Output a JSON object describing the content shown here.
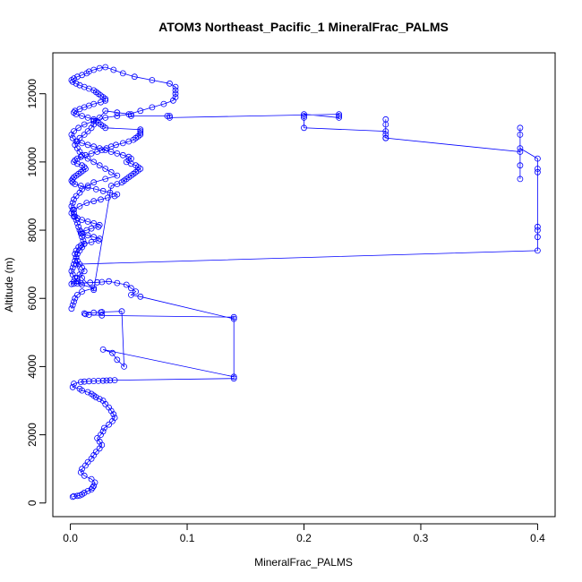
{
  "chart_data": {
    "type": "line",
    "title": "ATOM3 Northeast_Pacific_1 MineralFrac_PALMS",
    "xlabel": "MineralFrac_PALMS",
    "ylabel": "Altitude (m)",
    "xlim": [
      -0.015,
      0.415
    ],
    "ylim": [
      -400,
      13200
    ],
    "x_ticks": [
      0.0,
      0.1,
      0.2,
      0.3,
      0.4
    ],
    "x_tick_labels": [
      "0.0",
      "0.1",
      "0.2",
      "0.3",
      "0.4"
    ],
    "y_ticks": [
      0,
      2000,
      4000,
      6000,
      8000,
      10000,
      12000
    ],
    "y_tick_labels": [
      "0",
      "2000",
      "4000",
      "6000",
      "8000",
      "10000",
      "12000"
    ],
    "grid": false,
    "series": [
      {
        "color": "#0000ff",
        "marker": "open-circle",
        "x": [
          0.002,
          0.003,
          0.006,
          0.008,
          0.01,
          0.012,
          0.015,
          0.018,
          0.019,
          0.02,
          0.021,
          0.018,
          0.012,
          0.009,
          0.01,
          0.013,
          0.015,
          0.018,
          0.02,
          0.022,
          0.025,
          0.027,
          0.025,
          0.023,
          0.026,
          0.028,
          0.029,
          0.033,
          0.036,
          0.038,
          0.037,
          0.035,
          0.033,
          0.03,
          0.028,
          0.025,
          0.022,
          0.02,
          0.018,
          0.015,
          0.01,
          0.008,
          0.002,
          0.003,
          0.009,
          0.012,
          0.016,
          0.02,
          0.024,
          0.028,
          0.031,
          0.034,
          0.038,
          0.14,
          0.14,
          0.027,
          0.016,
          0.013,
          0.012,
          0.02,
          0.026,
          0.027,
          0.044,
          0.046,
          0.04,
          0.036,
          0.028,
          0.14,
          0.14,
          0.06,
          0.052,
          0.056,
          0.052,
          0.048,
          0.04,
          0.033,
          0.027,
          0.023,
          0.017,
          0.009,
          0.006,
          0.003,
          0.001,
          0.003,
          0.006,
          0.008,
          0.012,
          0.01,
          0.008,
          0.006,
          0.005,
          0.004,
          0.005,
          0.007,
          0.009,
          0.012,
          0.018,
          0.024,
          0.025,
          0.02,
          0.015,
          0.01,
          0.009,
          0.014,
          0.018,
          0.024,
          0.025,
          0.02,
          0.015,
          0.01,
          0.006,
          0.003,
          0.001,
          0.003,
          0.008,
          0.014,
          0.02,
          0.026,
          0.032,
          0.038,
          0.04,
          0.034,
          0.028,
          0.022,
          0.015,
          0.009,
          0.004,
          0.002,
          0.001,
          0.002,
          0.003,
          0.005,
          0.007,
          0.009,
          0.011,
          0.013,
          0.012,
          0.01,
          0.006,
          0.003,
          0.004,
          0.006,
          0.009,
          0.013,
          0.018,
          0.023,
          0.027,
          0.031,
          0.035,
          0.039,
          0.045,
          0.05,
          0.054,
          0.056,
          0.058,
          0.06,
          0.06,
          0.06,
          0.06,
          0.03,
          0.028,
          0.026,
          0.024,
          0.022,
          0.02,
          0.015,
          0.01,
          0.005,
          0.003,
          0.004,
          0.008,
          0.012,
          0.016,
          0.02,
          0.026,
          0.03,
          0.03,
          0.028,
          0.026,
          0.024,
          0.022,
          0.02,
          0.016,
          0.012,
          0.008,
          0.005,
          0.002,
          0.001,
          0.003,
          0.006,
          0.01,
          0.014,
          0.016,
          0.02,
          0.025,
          0.03,
          0.037,
          0.045,
          0.055,
          0.07,
          0.085,
          0.09,
          0.09,
          0.09,
          0.09,
          0.088,
          0.08,
          0.07,
          0.06,
          0.05,
          0.04,
          0.03,
          0.02,
          0.012,
          0.007,
          0.003,
          0.001,
          0.002,
          0.005,
          0.01,
          0.015,
          0.02,
          0.025,
          0.03,
          0.035,
          0.04,
          0.045,
          0.05,
          0.052,
          0.05,
          0.048,
          0.052,
          0.056,
          0.058,
          0.06,
          0.058,
          0.056,
          0.054,
          0.052,
          0.05,
          0.048,
          0.046,
          0.044,
          0.04,
          0.035,
          0.02,
          0.01,
          0.005,
          0.4,
          0.4,
          0.4,
          0.4,
          0.4,
          0.4,
          0.4,
          0.385,
          0.385,
          0.385,
          0.385,
          0.385,
          0.385,
          0.27,
          0.27,
          0.27,
          0.27,
          0.27,
          0.27,
          0.2,
          0.2,
          0.2,
          0.2,
          0.23,
          0.23,
          0.23,
          0.085,
          0.085,
          0.083,
          0.052,
          0.052,
          0.04,
          0.03,
          0.025,
          0.02,
          0.02,
          0.018,
          0.015,
          0.012,
          0.008,
          0.006,
          0.004,
          0.006,
          0.008,
          0.01,
          0.015,
          0.02,
          0.025,
          0.03,
          0.035,
          0.04,
          0.03,
          0.02,
          0.015,
          0.01,
          0.008,
          0.005,
          0.003,
          0.002,
          0.001,
          0.002,
          0.003,
          0.004,
          0.005,
          0.006,
          0.007,
          0.008,
          0.009,
          0.01,
          0.011,
          0.012,
          0.01,
          0.008,
          0.006,
          0.005,
          0.004,
          0.003,
          0.002,
          0.001,
          0.002,
          0.004,
          0.006,
          0.01,
          0.02,
          0.01,
          0.006,
          0.004,
          0.003,
          0.002,
          0.001
        ],
        "y": [
          180,
          200,
          210,
          220,
          250,
          300,
          350,
          400,
          450,
          500,
          600,
          700,
          800,
          900,
          1000,
          1100,
          1200,
          1300,
          1400,
          1500,
          1600,
          1700,
          1800,
          1900,
          2000,
          2100,
          2200,
          2300,
          2400,
          2500,
          2600,
          2700,
          2800,
          2900,
          3000,
          3050,
          3100,
          3150,
          3200,
          3250,
          3300,
          3350,
          3400,
          3500,
          3550,
          3560,
          3570,
          3575,
          3580,
          3585,
          3590,
          3595,
          3600,
          3650,
          5450,
          5500,
          5520,
          5540,
          5560,
          5580,
          5590,
          5600,
          5620,
          4000,
          4200,
          4400,
          4500,
          3700,
          5400,
          6050,
          6100,
          6200,
          6300,
          6400,
          6450,
          6500,
          6480,
          6470,
          6460,
          6450,
          6440,
          6430,
          6420,
          6500,
          6600,
          6700,
          6800,
          6900,
          7000,
          7100,
          7200,
          7300,
          7400,
          7500,
          7550,
          7600,
          7650,
          7700,
          7750,
          7800,
          7850,
          7900,
          7950,
          8000,
          8050,
          8100,
          8150,
          8200,
          8250,
          8300,
          8350,
          8400,
          8500,
          8600,
          8700,
          8800,
          8850,
          8900,
          8950,
          9000,
          9050,
          9100,
          9150,
          9200,
          9250,
          9300,
          9350,
          9400,
          9450,
          9500,
          9550,
          9600,
          9650,
          9700,
          9750,
          9800,
          9850,
          9900,
          9950,
          10000,
          10050,
          10100,
          10150,
          10200,
          10250,
          10300,
          10350,
          10400,
          10450,
          10500,
          10550,
          10600,
          10650,
          10700,
          10750,
          10800,
          10850,
          10900,
          10950,
          11000,
          11050,
          11100,
          11150,
          11200,
          11250,
          11300,
          11350,
          11400,
          11450,
          11500,
          11550,
          11600,
          11650,
          11700,
          11750,
          11800,
          11850,
          11900,
          11950,
          12000,
          12050,
          12100,
          12150,
          12200,
          12250,
          12300,
          12350,
          12400,
          12450,
          12500,
          12550,
          12600,
          12650,
          12700,
          12750,
          12780,
          12700,
          12600,
          12500,
          12400,
          12300,
          12200,
          12100,
          12000,
          11900,
          11800,
          11700,
          11600,
          11500,
          11400,
          11350,
          11300,
          11200,
          11100,
          11000,
          10900,
          10800,
          10700,
          10600,
          10550,
          10500,
          10450,
          10400,
          10350,
          10300,
          10250,
          10200,
          10150,
          10100,
          10050,
          10000,
          9950,
          9900,
          9850,
          9800,
          9750,
          9700,
          9650,
          9600,
          9550,
          9500,
          9450,
          9400,
          9350,
          9300,
          6250,
          6600,
          7000,
          7400,
          7800,
          8000,
          8100,
          9700,
          9800,
          10100,
          10400,
          10800,
          11000,
          9500,
          9900,
          10300,
          10700,
          11100,
          11250,
          10700,
          10800,
          10900,
          11000,
          11300,
          11350,
          11400,
          11300,
          11350,
          11400,
          11300,
          11350,
          11350,
          11350,
          11400,
          11450,
          11500,
          11300,
          11200,
          11100,
          11000,
          10900,
          10800,
          10700,
          10600,
          10500,
          10400,
          10300,
          10200,
          10100,
          10000,
          9900,
          9800,
          9700,
          9600,
          9500,
          9400,
          9300,
          9200,
          9100,
          9000,
          8900,
          8800,
          8700,
          8600,
          8500,
          8400,
          8300,
          8200,
          8100,
          8000,
          7900,
          7800,
          7700,
          7600,
          7500,
          7400,
          7300,
          7200,
          7100,
          7000,
          6900,
          6800,
          6700,
          6600,
          6500,
          6400,
          6300,
          6200,
          6100,
          6000,
          5900,
          5800,
          5700
        ]
      }
    ]
  }
}
